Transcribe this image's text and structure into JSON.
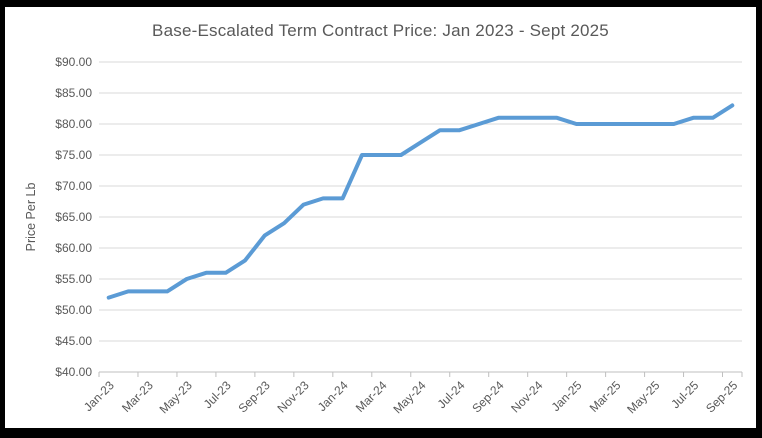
{
  "chart": {
    "title": "Base-Escalated Term Contract Price: Jan 2023 - Sept 2025"
  },
  "chart_data": {
    "type": "line",
    "title": "Base-Escalated Term Contract Price: Jan 2023 - Sept 2025",
    "xlabel": "",
    "ylabel": "Price Per Lb",
    "categories": [
      "Jan-23",
      "Feb-23",
      "Mar-23",
      "Apr-23",
      "May-23",
      "Jun-23",
      "Jul-23",
      "Aug-23",
      "Sep-23",
      "Oct-23",
      "Nov-23",
      "Dec-23",
      "Jan-24",
      "Feb-24",
      "Mar-24",
      "Apr-24",
      "May-24",
      "Jun-24",
      "Jul-24",
      "Aug-24",
      "Sep-24",
      "Oct-24",
      "Nov-24",
      "Dec-24",
      "Jan-25",
      "Feb-25",
      "Mar-25",
      "Apr-25",
      "May-25",
      "Jun-25",
      "Jul-25",
      "Aug-25",
      "Sep-25"
    ],
    "values": [
      52,
      53,
      53,
      53,
      55,
      56,
      56,
      58,
      62,
      64,
      67,
      68,
      68,
      75,
      75,
      75,
      77,
      79,
      79,
      80,
      81,
      81,
      81,
      81,
      80,
      80,
      80,
      80,
      80,
      80,
      81,
      81,
      83
    ],
    "x_tick_labels": [
      "Jan-23",
      "Mar-23",
      "May-23",
      "Jul-23",
      "Sep-23",
      "Nov-23",
      "Jan-24",
      "Mar-24",
      "May-24",
      "Jul-24",
      "Sep-24",
      "Nov-24",
      "Jan-25",
      "Mar-25",
      "May-25",
      "Jul-25",
      "Sep-25"
    ],
    "x_tick_every": 2,
    "ylim": [
      40,
      90
    ],
    "y_tick_step": 5,
    "y_tick_labels": [
      "$40.00",
      "$45.00",
      "$50.00",
      "$55.00",
      "$60.00",
      "$65.00",
      "$70.00",
      "$75.00",
      "$80.00",
      "$85.00",
      "$90.00"
    ],
    "grid": true,
    "legend": "none",
    "colors": {
      "line": "#5B9BD5",
      "gridline": "#D9D9D9",
      "axis": "#BFBFBF",
      "label": "#595959",
      "title": "#595959",
      "frame": "#000000",
      "background": "#FFFFFF"
    }
  }
}
